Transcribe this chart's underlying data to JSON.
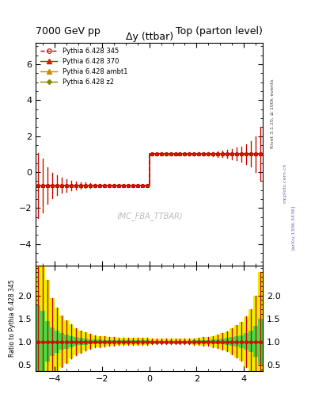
{
  "title_left": "7000 GeV pp",
  "title_right": "Top (parton level)",
  "plot_title": "Δy (ttbar)",
  "watermark": "(MC_FBA_TTBAR)",
  "ylabel_ratio": "Ratio to Pythia 6.428 345",
  "right_label": "Rivet 3.1.10, ≥ 100k events",
  "arxiv_label": "[arXiv:1306.3436]",
  "mcplots_label": "mcplots.cern.ch",
  "xlim": [
    -4.8,
    4.8
  ],
  "ylim_main": [
    -5.2,
    7.2
  ],
  "ylim_ratio": [
    0.35,
    2.65
  ],
  "yticks_main": [
    -4,
    -2,
    0,
    2,
    4,
    6
  ],
  "yticks_ratio": [
    0.5,
    1.0,
    1.5,
    2.0
  ],
  "xticks": [
    -4,
    -2,
    0,
    2,
    4
  ],
  "x_edges": [
    -4.8,
    -4.6,
    -4.4,
    -4.2,
    -4.0,
    -3.8,
    -3.6,
    -3.4,
    -3.2,
    -3.0,
    -2.8,
    -2.6,
    -2.4,
    -2.2,
    -2.0,
    -1.8,
    -1.6,
    -1.4,
    -1.2,
    -1.0,
    -0.8,
    -0.6,
    -0.4,
    -0.2,
    0.0,
    0.2,
    0.4,
    0.6,
    0.8,
    1.0,
    1.2,
    1.4,
    1.6,
    1.8,
    2.0,
    2.2,
    2.4,
    2.6,
    2.8,
    3.0,
    3.2,
    3.4,
    3.6,
    3.8,
    4.0,
    4.2,
    4.4,
    4.6,
    4.8
  ],
  "ref_values": [
    -0.75,
    -0.75,
    -0.75,
    -0.75,
    -0.75,
    -0.75,
    -0.75,
    -0.75,
    -0.75,
    -0.75,
    -0.75,
    -0.75,
    -0.75,
    -0.75,
    -0.75,
    -0.75,
    -0.75,
    -0.75,
    -0.75,
    -0.75,
    -0.75,
    -0.75,
    -0.75,
    -0.75,
    1.0,
    1.0,
    1.0,
    1.0,
    1.0,
    1.0,
    1.0,
    1.0,
    1.0,
    1.0,
    1.0,
    1.0,
    1.0,
    1.0,
    1.0,
    1.0,
    1.0,
    1.0,
    1.0,
    1.0,
    1.0,
    1.0,
    1.0,
    1.0
  ],
  "ref_errors": [
    1.8,
    1.5,
    1.0,
    0.7,
    0.55,
    0.42,
    0.35,
    0.28,
    0.22,
    0.18,
    0.15,
    0.12,
    0.1,
    0.09,
    0.08,
    0.07,
    0.07,
    0.06,
    0.06,
    0.06,
    0.06,
    0.06,
    0.06,
    0.06,
    0.06,
    0.06,
    0.06,
    0.06,
    0.06,
    0.06,
    0.06,
    0.06,
    0.06,
    0.07,
    0.08,
    0.09,
    0.1,
    0.12,
    0.15,
    0.18,
    0.22,
    0.28,
    0.35,
    0.42,
    0.55,
    0.7,
    1.0,
    1.5
  ],
  "mc370_values": [
    -0.75,
    -0.75,
    -0.75,
    -0.75,
    -0.75,
    -0.75,
    -0.75,
    -0.75,
    -0.75,
    -0.75,
    -0.75,
    -0.75,
    -0.75,
    -0.75,
    -0.75,
    -0.75,
    -0.75,
    -0.75,
    -0.75,
    -0.75,
    -0.75,
    -0.75,
    -0.75,
    -0.75,
    1.0,
    1.0,
    1.0,
    1.0,
    1.0,
    1.0,
    1.0,
    1.0,
    1.0,
    1.0,
    1.0,
    1.0,
    1.0,
    1.0,
    1.0,
    1.0,
    1.0,
    1.0,
    1.0,
    1.0,
    1.0,
    1.0,
    1.0,
    1.0
  ],
  "mc370_errors": [
    1.8,
    1.5,
    1.0,
    0.7,
    0.55,
    0.42,
    0.35,
    0.28,
    0.22,
    0.18,
    0.15,
    0.12,
    0.1,
    0.09,
    0.08,
    0.07,
    0.07,
    0.06,
    0.06,
    0.06,
    0.06,
    0.06,
    0.06,
    0.06,
    0.06,
    0.06,
    0.06,
    0.06,
    0.06,
    0.06,
    0.06,
    0.06,
    0.06,
    0.07,
    0.08,
    0.09,
    0.1,
    0.12,
    0.15,
    0.18,
    0.22,
    0.28,
    0.35,
    0.42,
    0.55,
    0.7,
    1.0,
    1.5
  ],
  "mc_ambt1_values": [
    -0.75,
    -0.75,
    -0.75,
    -0.75,
    -0.75,
    -0.75,
    -0.75,
    -0.75,
    -0.75,
    -0.75,
    -0.75,
    -0.75,
    -0.75,
    -0.75,
    -0.75,
    -0.75,
    -0.75,
    -0.75,
    -0.75,
    -0.75,
    -0.75,
    -0.75,
    -0.75,
    -0.75,
    1.0,
    1.0,
    1.0,
    1.0,
    1.0,
    1.0,
    1.0,
    1.0,
    1.0,
    1.0,
    1.0,
    1.0,
    1.0,
    1.0,
    1.0,
    1.0,
    1.0,
    1.0,
    1.0,
    1.0,
    1.0,
    1.0,
    1.0,
    1.0
  ],
  "mc_ambt1_errors": [
    1.8,
    1.5,
    1.0,
    0.7,
    0.55,
    0.42,
    0.35,
    0.28,
    0.22,
    0.18,
    0.15,
    0.12,
    0.1,
    0.09,
    0.08,
    0.07,
    0.07,
    0.06,
    0.06,
    0.06,
    0.06,
    0.06,
    0.06,
    0.06,
    0.06,
    0.06,
    0.06,
    0.06,
    0.06,
    0.06,
    0.06,
    0.06,
    0.06,
    0.07,
    0.08,
    0.09,
    0.1,
    0.12,
    0.15,
    0.18,
    0.22,
    0.28,
    0.35,
    0.42,
    0.55,
    0.7,
    1.0,
    1.5
  ],
  "mc_z2_values": [
    -0.75,
    -0.75,
    -0.75,
    -0.75,
    -0.75,
    -0.75,
    -0.75,
    -0.75,
    -0.75,
    -0.75,
    -0.75,
    -0.75,
    -0.75,
    -0.75,
    -0.75,
    -0.75,
    -0.75,
    -0.75,
    -0.75,
    -0.75,
    -0.75,
    -0.75,
    -0.75,
    -0.75,
    1.0,
    1.0,
    1.0,
    1.0,
    1.0,
    1.0,
    1.0,
    1.0,
    1.0,
    1.0,
    1.0,
    1.0,
    1.0,
    1.0,
    1.0,
    1.0,
    1.0,
    1.0,
    1.0,
    1.0,
    1.0,
    1.0,
    1.0,
    1.0
  ],
  "mc_z2_errors": [
    1.8,
    1.5,
    1.0,
    0.7,
    0.55,
    0.42,
    0.35,
    0.28,
    0.22,
    0.18,
    0.15,
    0.12,
    0.1,
    0.09,
    0.08,
    0.07,
    0.07,
    0.06,
    0.06,
    0.06,
    0.06,
    0.06,
    0.06,
    0.06,
    0.06,
    0.06,
    0.06,
    0.06,
    0.06,
    0.06,
    0.06,
    0.06,
    0.06,
    0.07,
    0.08,
    0.09,
    0.1,
    0.12,
    0.15,
    0.18,
    0.22,
    0.28,
    0.35,
    0.42,
    0.55,
    0.7,
    1.0,
    1.5
  ],
  "color_ref": "#cc0000",
  "color_370": "#cc2200",
  "color_ambt1": "#cc8800",
  "color_z2": "#888800",
  "color_green_band": "#44dd44",
  "color_yellow_band": "#eeee00",
  "legend_labels": [
    "Pythia 6.428 345",
    "Pythia 6.428 370",
    "Pythia 6.428 ambt1",
    "Pythia 6.428 z2"
  ],
  "bg_color": "#ffffff"
}
